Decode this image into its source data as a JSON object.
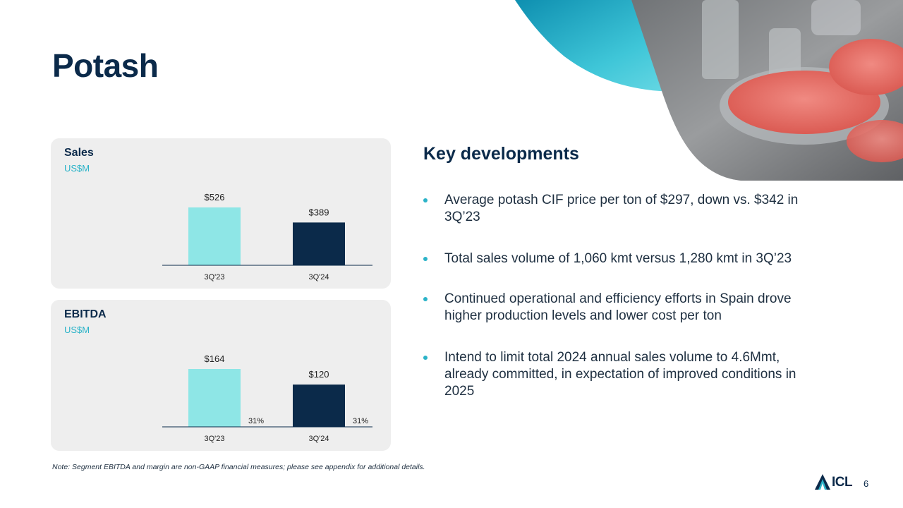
{
  "title": "Potash",
  "sales_panel": {
    "title": "Sales",
    "unit": "US$M"
  },
  "ebitda_panel": {
    "title": "EBITDA",
    "unit": "US$M"
  },
  "chart_data": [
    {
      "type": "bar",
      "title": "Sales",
      "ylabel": "US$M",
      "categories": [
        "3Q'23",
        "3Q'24"
      ],
      "values": [
        526,
        389
      ],
      "value_labels": [
        "$526",
        "$389"
      ],
      "colors": [
        "#8ee6e6",
        "#0b2a4a"
      ],
      "ylim": [
        0,
        526
      ]
    },
    {
      "type": "bar",
      "title": "EBITDA",
      "ylabel": "US$M",
      "categories": [
        "3Q'23",
        "3Q'24"
      ],
      "values": [
        164,
        120
      ],
      "value_labels": [
        "$164",
        "$120"
      ],
      "margins": [
        "31%",
        "31%"
      ],
      "colors": [
        "#8ee6e6",
        "#0b2a4a"
      ],
      "ylim": [
        0,
        164
      ]
    }
  ],
  "key_developments": {
    "title": "Key developments",
    "bullets": [
      "Average potash CIF price per ton of $297, down vs. $342 in 3Q’23",
      "Total sales volume of 1,060 kmt versus 1,280 kmt in 3Q’23",
      "Continued operational and efficiency efforts in Spain drove higher production levels and lower cost per ton",
      "Intend to limit total 2024 annual sales volume to 4.6Mmt, already committed, in expectation of improved conditions in 2025"
    ]
  },
  "note": "Note: Segment EBITDA and margin are non-GAAP financial measures; please see appendix for additional details.",
  "logo_text": "ICL",
  "page_number": "6",
  "colors": {
    "navy": "#0b2a4a",
    "teal": "#2bb3c8",
    "light_teal": "#8ee6e6",
    "panel_bg": "#eeeeee"
  }
}
